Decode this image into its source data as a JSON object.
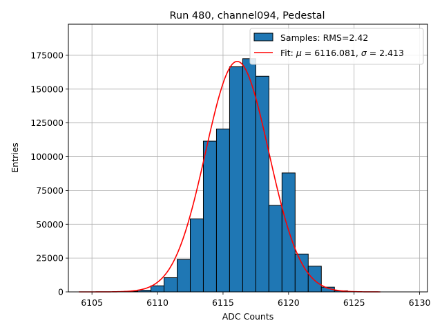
{
  "chart_data": {
    "type": "bar",
    "title": "Run 480, channel094, Pedestal",
    "xlabel": "ADC Counts",
    "ylabel": "Entries",
    "xlim": [
      6103.2,
      6130.6
    ],
    "ylim": [
      0,
      198000
    ],
    "xticks": [
      6105,
      6110,
      6115,
      6120,
      6125,
      6130
    ],
    "yticks": [
      0,
      25000,
      50000,
      75000,
      100000,
      125000,
      150000,
      175000
    ],
    "grid": true,
    "legend_position": "top-right",
    "bin_width": 1,
    "bins": [
      {
        "x": 6108,
        "value": 400
      },
      {
        "x": 6109,
        "value": 1200
      },
      {
        "x": 6110,
        "value": 4500
      },
      {
        "x": 6111,
        "value": 10500
      },
      {
        "x": 6112,
        "value": 24000
      },
      {
        "x": 6113,
        "value": 54000
      },
      {
        "x": 6114,
        "value": 111500
      },
      {
        "x": 6115,
        "value": 120500
      },
      {
        "x": 6116,
        "value": 166500
      },
      {
        "x": 6117,
        "value": 172500
      },
      {
        "x": 6118,
        "value": 159500
      },
      {
        "x": 6119,
        "value": 64000
      },
      {
        "x": 6120,
        "value": 88000
      },
      {
        "x": 6121,
        "value": 28000
      },
      {
        "x": 6122,
        "value": 19000
      },
      {
        "x": 6123,
        "value": 3500
      },
      {
        "x": 6124,
        "value": 800
      },
      {
        "x": 6125,
        "value": 200
      }
    ],
    "fit": {
      "mu": 6116.081,
      "sigma": 2.413,
      "amplitude": 170500,
      "x_range": [
        6104,
        6127
      ]
    },
    "series": [
      {
        "name": "Samples: RMS=2.42",
        "type": "histogram",
        "color": "#1f77b4"
      },
      {
        "name": "Fit: $\\mu$ = 6116.081, $\\sigma$ = 2.413",
        "type": "line",
        "color": "#ff0000"
      }
    ],
    "legend": {
      "hist_prefix": "Samples: RMS=2.42",
      "fit_prefix": "Fit: ",
      "mu_symbol": "μ",
      "fit_middle": " = 6116.081, ",
      "sigma_symbol": "σ",
      "fit_suffix": " = 2.413"
    }
  }
}
